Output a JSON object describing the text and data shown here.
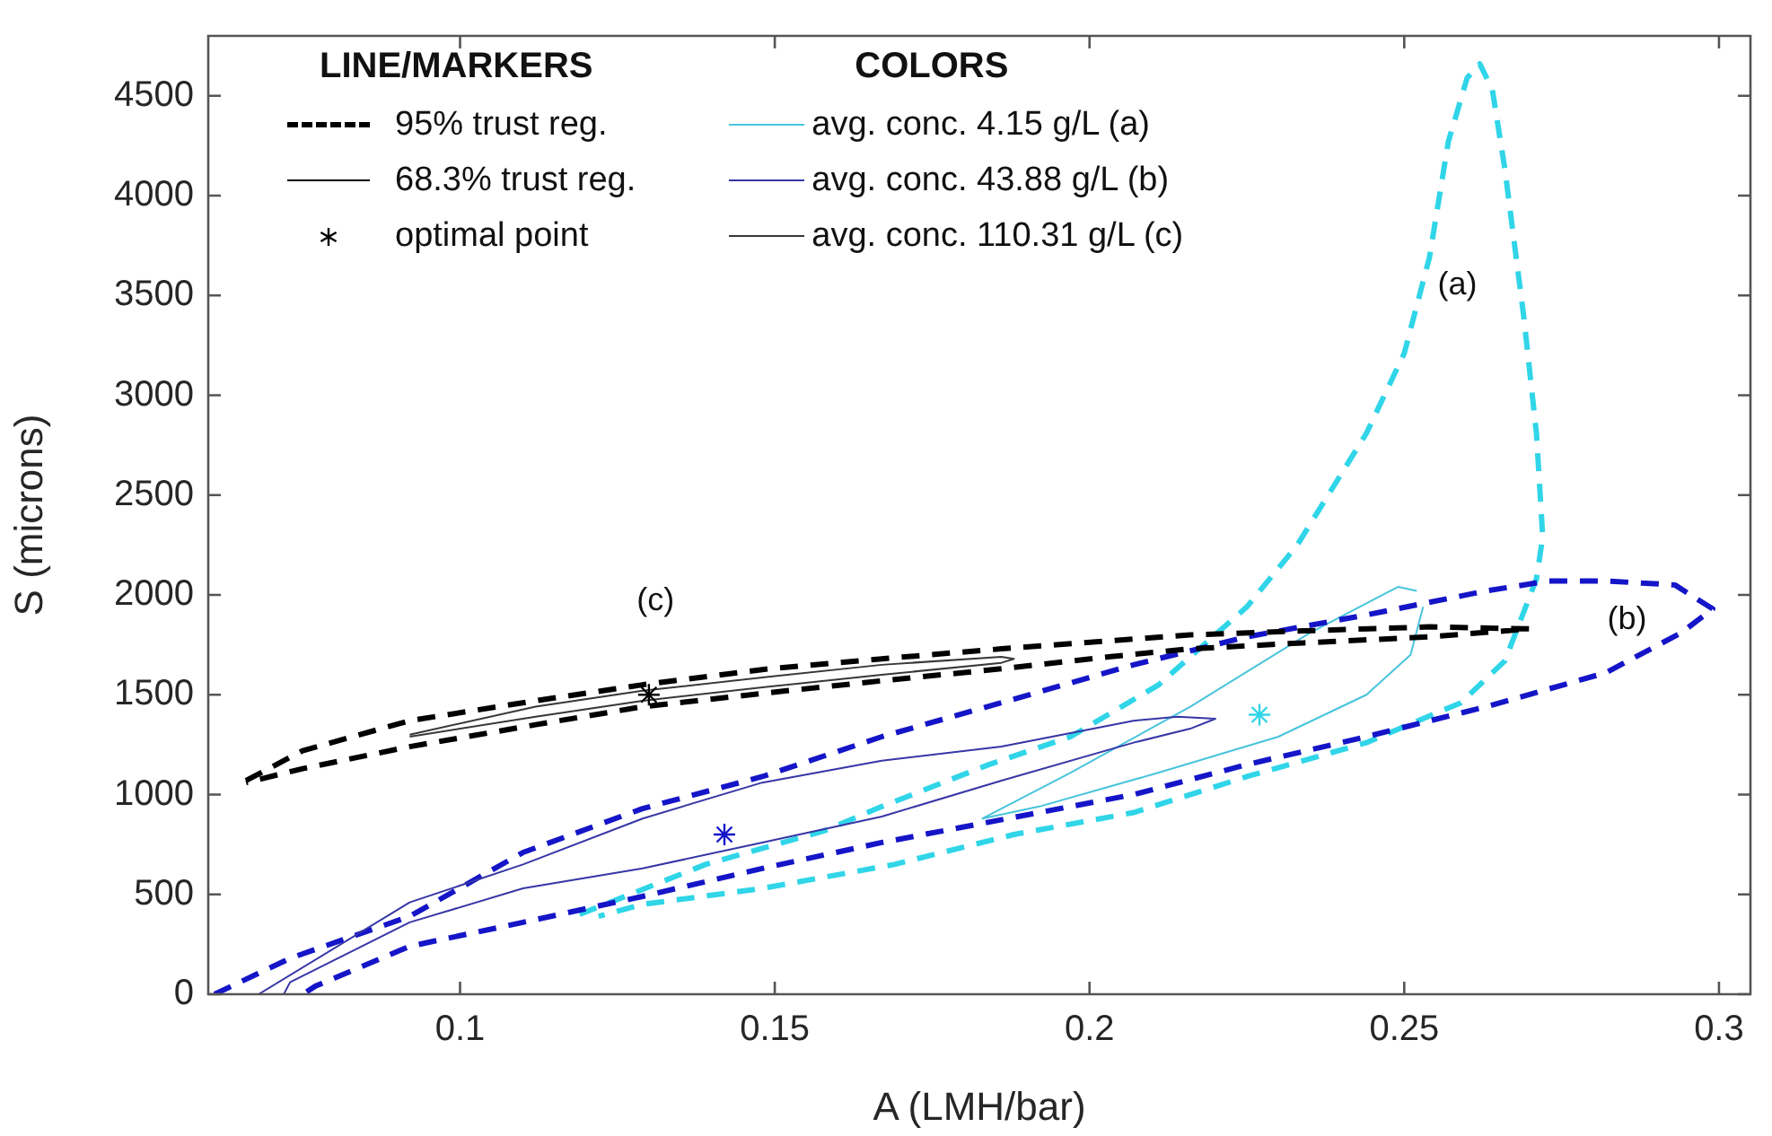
{
  "chart_data": {
    "type": "line",
    "xlabel": "A (LMH/bar)",
    "ylabel": "S (microns)",
    "xlim": [
      0.06,
      0.305
    ],
    "ylim": [
      0,
      4800
    ],
    "xticks": [
      0.1,
      0.15,
      0.2,
      0.25,
      0.3
    ],
    "yticks": [
      0,
      500,
      1000,
      1500,
      2000,
      2500,
      3000,
      3500,
      4000,
      4500
    ],
    "legend": "top left",
    "legend_title": "COLORS",
    "series": [
      {
        "color": "#30d5e8",
        "line_style": "dashed",
        "marker": "none",
        "x": [
          0.119,
          0.139,
          0.158,
          0.167,
          0.184,
          0.197,
          0.211,
          0.225,
          0.233,
          0.244,
          0.25,
          0.254,
          0.257,
          0.26,
          0.262,
          0.264,
          0.266,
          0.269,
          0.271,
          0.272,
          0.271,
          0.266,
          0.259,
          0.244,
          0.225,
          0.207,
          0.188,
          0.169,
          0.148,
          0.129,
          0.122
        ],
        "values": [
          400,
          650,
          820,
          940,
          1150,
          1290,
          1550,
          1940,
          2250,
          2810,
          3210,
          3690,
          4270,
          4590,
          4660,
          4530,
          4130,
          3390,
          2810,
          2290,
          2080,
          1670,
          1460,
          1260,
          1090,
          910,
          800,
          650,
          530,
          450,
          390
        ]
      },
      {
        "name": "avg. conc. 4.15 g/L (a)",
        "color": "#48c4dc",
        "line_style": "solid",
        "marker": "none",
        "x": [
          0.253,
          0.251,
          0.244,
          0.23,
          0.211,
          0.192,
          0.183,
          0.197,
          0.216,
          0.235,
          0.249,
          0.252
        ],
        "values": [
          1940,
          1700,
          1500,
          1290,
          1110,
          940,
          880,
          1110,
          1440,
          1810,
          2040,
          2020
        ]
      },
      {
        "color": "#30d5e8",
        "type": "scatter",
        "marker": "cross",
        "x": [
          0.227
        ],
        "values": [
          1400
        ]
      },
      {
        "color": "#1515c8",
        "line_style": "dashed",
        "marker": "none",
        "x": [
          0.061,
          0.073,
          0.092,
          0.11,
          0.129,
          0.148,
          0.167,
          0.186,
          0.207,
          0.225,
          0.244,
          0.263,
          0.273,
          0.282,
          0.293,
          0.299,
          0.294,
          0.282,
          0.263,
          0.244,
          0.225,
          0.207,
          0.187,
          0.167,
          0.148,
          0.129,
          0.11,
          0.092,
          0.077,
          0.075
        ],
        "values": [
          0,
          180,
          390,
          710,
          930,
          1090,
          1290,
          1460,
          1650,
          1790,
          1900,
          2020,
          2070,
          2070,
          2050,
          1930,
          1810,
          1610,
          1440,
          1290,
          1150,
          1000,
          880,
          760,
          630,
          490,
          360,
          240,
          40,
          0
        ]
      },
      {
        "name": "avg. conc. 43.88 g/L (b)",
        "color": "#3636a6",
        "line_style": "solid",
        "marker": "none",
        "x": [
          0.068,
          0.092,
          0.11,
          0.129,
          0.148,
          0.167,
          0.186,
          0.207,
          0.214,
          0.22,
          0.216,
          0.207,
          0.186,
          0.167,
          0.148,
          0.129,
          0.11,
          0.092,
          0.073,
          0.072
        ],
        "values": [
          0,
          460,
          650,
          880,
          1060,
          1170,
          1240,
          1370,
          1390,
          1380,
          1330,
          1260,
          1070,
          890,
          760,
          630,
          530,
          360,
          60,
          0
        ]
      },
      {
        "color": "#1515c8",
        "type": "scatter",
        "marker": "cross",
        "x": [
          0.142
        ],
        "values": [
          800
        ]
      },
      {
        "color": "#000000",
        "line_style": "dashed",
        "marker": "none",
        "x": [
          0.066,
          0.075,
          0.092,
          0.112,
          0.129,
          0.149,
          0.167,
          0.186,
          0.203,
          0.216,
          0.234,
          0.254,
          0.27,
          0.254,
          0.234,
          0.216,
          0.203,
          0.186,
          0.167,
          0.149,
          0.129,
          0.112,
          0.092,
          0.075,
          0.066
        ],
        "values": [
          1070,
          1220,
          1370,
          1470,
          1550,
          1630,
          1680,
          1730,
          1770,
          1800,
          1820,
          1840,
          1830,
          1790,
          1760,
          1730,
          1690,
          1630,
          1570,
          1510,
          1440,
          1350,
          1240,
          1130,
          1060
        ]
      },
      {
        "name": "avg. conc. 110.31 g/L (c)",
        "color": "#383838",
        "line_style": "solid",
        "marker": "none",
        "x": [
          0.092,
          0.112,
          0.129,
          0.149,
          0.167,
          0.186,
          0.188,
          0.186,
          0.167,
          0.149,
          0.129,
          0.112,
          0.092
        ],
        "values": [
          1300,
          1440,
          1520,
          1590,
          1650,
          1690,
          1680,
          1660,
          1600,
          1540,
          1470,
          1390,
          1290
        ]
      },
      {
        "color": "#000000",
        "type": "scatter",
        "marker": "cross",
        "x": [
          0.13
        ],
        "values": [
          1500
        ]
      }
    ],
    "annotations": [
      "LINE/MARKERS",
      "95% trust reg.",
      "68.3% trust reg.",
      "optimal point",
      "(a)",
      "(b)",
      "(c)"
    ]
  }
}
